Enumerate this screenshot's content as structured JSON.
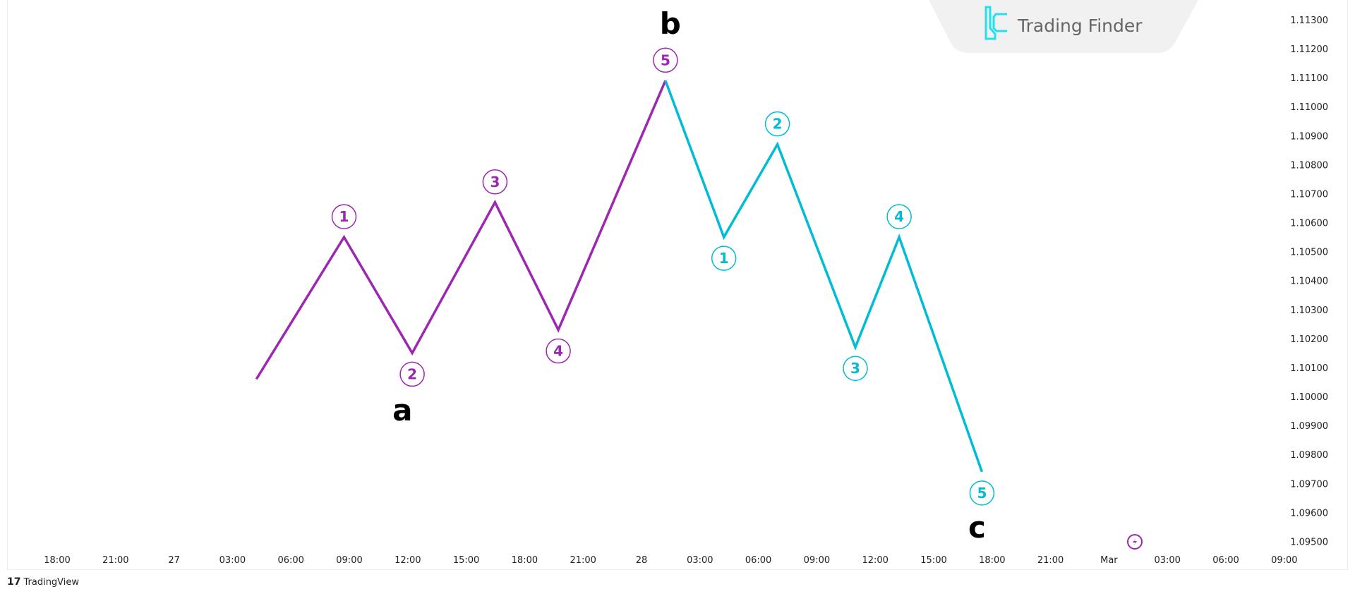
{
  "chart_data": {
    "type": "line",
    "title": "",
    "y_axis": {
      "ticks": [
        "1.11300",
        "1.11200",
        "1.11100",
        "1.11000",
        "1.10900",
        "1.10800",
        "1.10700",
        "1.10600",
        "1.10500",
        "1.10400",
        "1.10300",
        "1.10200",
        "1.10100",
        "1.10000",
        "1.09900",
        "1.09800",
        "1.09700",
        "1.09600",
        "1.09500"
      ],
      "range": [
        1.095,
        1.113
      ],
      "position": "right"
    },
    "x_axis": {
      "ticks": [
        "18:00",
        "21:00",
        "27",
        "03:00",
        "06:00",
        "09:00",
        "12:00",
        "15:00",
        "18:00",
        "21:00",
        "28",
        "03:00",
        "06:00",
        "09:00",
        "12:00",
        "15:00",
        "18:00",
        "21:00",
        "Mar",
        "03:00",
        "06:00",
        "09:00"
      ],
      "range": [
        "02-26 18:00",
        "03-01 09:00"
      ]
    },
    "grid": false,
    "series": [
      {
        "color": "#9c27b0",
        "points": [
          {
            "t": "02-27 04:15",
            "p": 1.1006,
            "label": ""
          },
          {
            "t": "02-27 08:45",
            "p": 1.1055,
            "label": "1"
          },
          {
            "t": "02-27 12:15",
            "p": 1.1015,
            "label": "2"
          },
          {
            "t": "02-27 16:30",
            "p": 1.1067,
            "label": "3"
          },
          {
            "t": "02-27 19:45",
            "p": 1.1023,
            "label": "4"
          },
          {
            "t": "02-28 01:15",
            "p": 1.1109,
            "label": "5"
          }
        ]
      },
      {
        "color": "#00bcd4",
        "points": [
          {
            "t": "02-28 01:15",
            "p": 1.1109,
            "label": ""
          },
          {
            "t": "02-28 04:15",
            "p": 1.1055,
            "label": "1"
          },
          {
            "t": "02-28 07:00",
            "p": 1.1087,
            "label": "2"
          },
          {
            "t": "02-28 11:00",
            "p": 1.1017,
            "label": "3"
          },
          {
            "t": "02-28 13:15",
            "p": 1.1055,
            "label": "4"
          },
          {
            "t": "02-28 17:30",
            "p": 1.0974,
            "label": "5"
          }
        ]
      }
    ],
    "annotations": [
      {
        "text": "a",
        "t": "02-27 11:45",
        "p": 1.0999
      },
      {
        "text": "b",
        "t": "02-28 01:30",
        "p": 1.1132
      },
      {
        "text": "c",
        "t": "02-28 17:15",
        "p": 1.0962
      }
    ]
  },
  "watermark": {
    "text": "Trading Finder",
    "accent": "#22e0ee"
  },
  "footer": {
    "brand": "TradingView",
    "logo": "17"
  },
  "icons": {
    "marker": "lightning-icon"
  }
}
